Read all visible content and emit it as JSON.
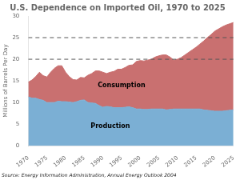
{
  "chart_data": {
    "type": "area",
    "title": "U.S. Dependence on Imported Oil, 1970 to 2025",
    "ylabel": "Millions of Barrels Per Day",
    "source": "Source: Energy Information Administration, Annual Energy Outlook 2004",
    "x": [
      1970,
      1971,
      1972,
      1973,
      1974,
      1975,
      1976,
      1977,
      1978,
      1979,
      1980,
      1981,
      1982,
      1983,
      1984,
      1985,
      1986,
      1987,
      1988,
      1989,
      1990,
      1991,
      1992,
      1993,
      1994,
      1995,
      1996,
      1997,
      1998,
      1999,
      2000,
      2001,
      2002,
      2003,
      2004,
      2005,
      2006,
      2007,
      2008,
      2009,
      2010,
      2011,
      2012,
      2013,
      2014,
      2015,
      2016,
      2017,
      2018,
      2019,
      2020,
      2021,
      2022,
      2023,
      2024,
      2025
    ],
    "series": [
      {
        "name": "Production",
        "color": "#7bafd4",
        "values": [
          11.3,
          11.0,
          11.0,
          10.7,
          10.5,
          10.0,
          10.0,
          10.0,
          10.3,
          10.2,
          10.2,
          10.1,
          10.0,
          10.2,
          10.5,
          10.6,
          10.0,
          9.9,
          9.8,
          9.3,
          8.9,
          9.1,
          9.0,
          8.8,
          8.8,
          8.8,
          8.9,
          9.0,
          8.8,
          8.5,
          8.5,
          8.4,
          8.4,
          8.5,
          8.5,
          8.5,
          8.5,
          8.3,
          8.4,
          8.5,
          8.5,
          8.5,
          8.5,
          8.5,
          8.5,
          8.5,
          8.5,
          8.3,
          8.2,
          8.1,
          8.0,
          8.0,
          8.0,
          8.1,
          8.2,
          8.3
        ]
      },
      {
        "name": "Consumption",
        "color": "#c97070",
        "values": [
          14.7,
          15.2,
          16.0,
          17.0,
          16.2,
          15.9,
          17.0,
          17.9,
          18.5,
          18.5,
          17.0,
          16.0,
          15.3,
          15.2,
          15.8,
          15.7,
          16.3,
          16.7,
          17.3,
          17.3,
          17.0,
          16.7,
          17.0,
          17.2,
          17.7,
          17.7,
          18.1,
          18.6,
          18.7,
          19.5,
          19.7,
          19.6,
          19.8,
          20.0,
          20.5,
          20.8,
          21.0,
          21.0,
          20.5,
          19.8,
          20.0,
          20.4,
          21.0,
          21.6,
          22.2,
          22.8,
          23.5,
          24.2,
          25.0,
          25.7,
          26.5,
          27.0,
          27.5,
          27.9,
          28.2,
          28.5
        ]
      }
    ],
    "xlim": [
      1970,
      2025
    ],
    "xticks": [
      1970,
      1975,
      1980,
      1985,
      1990,
      1995,
      2000,
      2005,
      2010,
      2015,
      2020,
      2025
    ],
    "ylim": [
      0,
      30
    ],
    "yticks": [
      0,
      5,
      10,
      15,
      20,
      25,
      30
    ],
    "reference_lines": [
      20,
      25
    ],
    "annotations": [
      {
        "text": "Production",
        "x": 1992,
        "y": 4.5
      },
      {
        "text": "Consumption",
        "x": 1995,
        "y": 14.0
      }
    ],
    "grid": false
  }
}
